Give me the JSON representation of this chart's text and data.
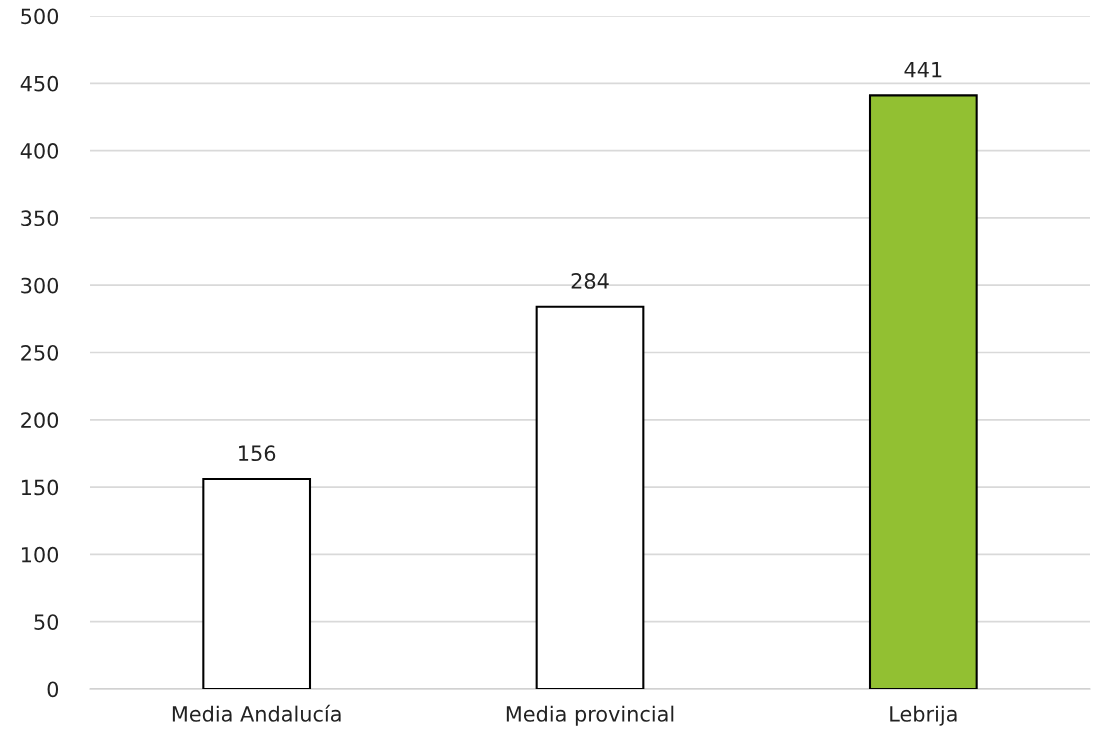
{
  "chart_data": {
    "type": "bar",
    "categories": [
      "Media Andalucía",
      "Media provincial",
      "Lebrija"
    ],
    "values": [
      156,
      284,
      441
    ],
    "colors": [
      "#ffffff",
      "#ffffff",
      "#92c032"
    ],
    "ylim": [
      0,
      500
    ],
    "yticks": [
      0,
      50,
      100,
      150,
      200,
      250,
      300,
      350,
      400,
      450,
      500
    ],
    "grid": "y",
    "data_labels": true
  }
}
